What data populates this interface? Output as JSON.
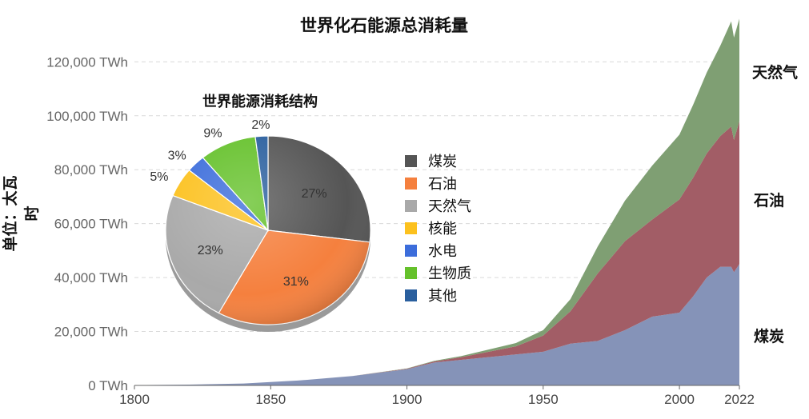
{
  "chart_data": [
    {
      "type": "area",
      "title": "世界化石能源总消耗量",
      "ylabel": "单位：太瓦时",
      "xlabel": "",
      "ylim": [
        0,
        137000
      ],
      "xlim": [
        1800,
        2022
      ],
      "y_ticks": [
        "0 TWh",
        "20,000 TWh",
        "40,000 TWh",
        "60,000 TWh",
        "80,000 TWh",
        "100,000 TWh",
        "120,000 TWh"
      ],
      "x_ticks": [
        "1800",
        "1850",
        "1900",
        "1950",
        "2000",
        "2022"
      ],
      "grid": true,
      "stacked": true,
      "x": [
        1800,
        1820,
        1840,
        1860,
        1880,
        1900,
        1910,
        1920,
        1930,
        1940,
        1950,
        1960,
        1970,
        1980,
        1990,
        2000,
        2005,
        2010,
        2015,
        2019,
        2020,
        2022
      ],
      "series": [
        {
          "name": "煤炭",
          "color": "#8593b8",
          "values": [
            100,
            300,
            700,
            1800,
            3500,
            6000,
            8500,
            9500,
            10500,
            11500,
            12500,
            15500,
            16500,
            20500,
            25500,
            27000,
            33000,
            40000,
            44000,
            44000,
            42000,
            45000
          ]
        },
        {
          "name": "石油",
          "color": "#a25d66",
          "values": [
            0,
            0,
            0,
            0,
            0,
            200,
            400,
            1000,
            2000,
            3000,
            6000,
            12000,
            25000,
            33000,
            36000,
            42000,
            44000,
            46000,
            48500,
            52000,
            49000,
            53000
          ]
        },
        {
          "name": "天然气",
          "color": "#7f9f73",
          "values": [
            0,
            0,
            0,
            0,
            0,
            100,
            200,
            400,
            800,
            1200,
            2000,
            4500,
            10000,
            15000,
            20000,
            24000,
            27000,
            30000,
            33500,
            39000,
            38000,
            38000
          ]
        }
      ],
      "area_labels": [
        "天然气",
        "石油",
        "煤炭"
      ]
    },
    {
      "type": "pie",
      "title": "世界能源消耗结构",
      "series": [
        {
          "name": "煤炭",
          "value": 27,
          "label": "27%",
          "color": "#555555"
        },
        {
          "name": "石油",
          "value": 31,
          "label": "31%",
          "color": "#f5803e"
        },
        {
          "name": "天然气",
          "value": 23,
          "label": "23%",
          "color": "#a9a9a9"
        },
        {
          "name": "核能",
          "value": 5,
          "label": "5%",
          "color": "#fcc11e"
        },
        {
          "name": "水电",
          "value": 3,
          "label": "3%",
          "color": "#3c6ddb"
        },
        {
          "name": "生物质",
          "value": 9,
          "label": "9%",
          "color": "#65c12b"
        },
        {
          "name": "其他",
          "value": 2,
          "label": "2%",
          "color": "#2a5f9e"
        }
      ]
    }
  ]
}
